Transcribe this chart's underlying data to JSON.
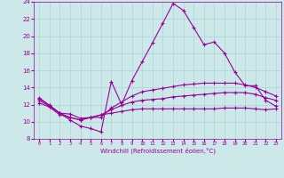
{
  "xlabel": "Windchill (Refroidissement éolien,°C)",
  "bg_color": "#cce8e8",
  "grid_color": "#aad4d4",
  "line_color": "#990099",
  "xlim": [
    -0.5,
    23.5
  ],
  "ylim": [
    8,
    24
  ],
  "xticks": [
    0,
    1,
    2,
    3,
    4,
    5,
    6,
    7,
    8,
    9,
    10,
    11,
    12,
    13,
    14,
    15,
    16,
    17,
    18,
    19,
    20,
    21,
    22,
    23
  ],
  "yticks": [
    8,
    10,
    12,
    14,
    16,
    18,
    20,
    22,
    24
  ],
  "line1_x": [
    0,
    1,
    2,
    3,
    4,
    5,
    6,
    7,
    8,
    9,
    10,
    11,
    12,
    13,
    14,
    15,
    16,
    17,
    18,
    19,
    20,
    21,
    22,
    23
  ],
  "line1_y": [
    12.8,
    11.9,
    11.0,
    10.2,
    9.5,
    9.2,
    8.8,
    14.7,
    12.0,
    14.8,
    17.0,
    19.2,
    21.5,
    23.8,
    23.0,
    21.0,
    19.0,
    19.3,
    18.0,
    15.8,
    14.2,
    14.2,
    12.5,
    11.8
  ],
  "line2_x": [
    0,
    1,
    2,
    3,
    4,
    5,
    6,
    7,
    8,
    9,
    10,
    11,
    12,
    13,
    14,
    15,
    16,
    17,
    18,
    19,
    20,
    21,
    22,
    23
  ],
  "line2_y": [
    12.7,
    11.9,
    11.0,
    10.9,
    10.4,
    10.5,
    10.5,
    11.6,
    12.3,
    13.0,
    13.5,
    13.7,
    13.9,
    14.1,
    14.3,
    14.4,
    14.5,
    14.5,
    14.5,
    14.5,
    14.3,
    14.0,
    13.5,
    13.0
  ],
  "line3_x": [
    0,
    1,
    2,
    3,
    4,
    5,
    6,
    7,
    8,
    9,
    10,
    11,
    12,
    13,
    14,
    15,
    16,
    17,
    18,
    19,
    20,
    21,
    22,
    23
  ],
  "line3_y": [
    12.5,
    11.8,
    11.0,
    10.5,
    10.2,
    10.5,
    10.8,
    11.4,
    11.9,
    12.3,
    12.5,
    12.6,
    12.7,
    12.9,
    13.0,
    13.1,
    13.2,
    13.3,
    13.4,
    13.4,
    13.4,
    13.2,
    12.8,
    12.5
  ],
  "line4_x": [
    0,
    1,
    2,
    3,
    4,
    5,
    6,
    7,
    8,
    9,
    10,
    11,
    12,
    13,
    14,
    15,
    16,
    17,
    18,
    19,
    20,
    21,
    22,
    23
  ],
  "line4_y": [
    12.2,
    11.7,
    10.8,
    10.5,
    10.2,
    10.5,
    10.8,
    11.0,
    11.2,
    11.4,
    11.5,
    11.5,
    11.5,
    11.5,
    11.5,
    11.5,
    11.5,
    11.5,
    11.6,
    11.6,
    11.6,
    11.5,
    11.4,
    11.5
  ]
}
